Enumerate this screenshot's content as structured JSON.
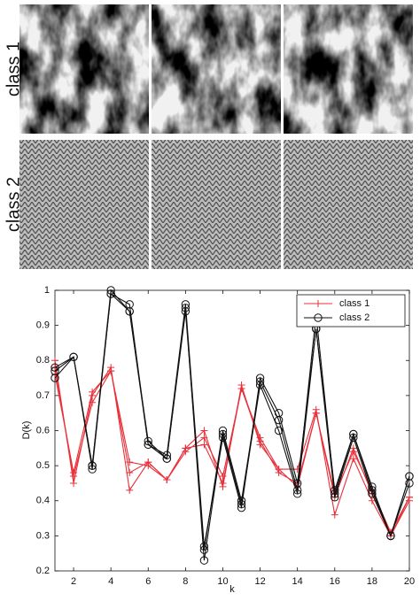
{
  "image_rows": [
    "class 1",
    "class 2"
  ],
  "chart_data": {
    "type": "line",
    "x_label": "k",
    "y_label": "D(k)",
    "x": [
      1,
      2,
      3,
      4,
      5,
      6,
      7,
      8,
      9,
      10,
      11,
      12,
      13,
      14,
      15,
      16,
      17,
      18,
      19,
      20
    ],
    "xlim": [
      1,
      20
    ],
    "xticks": [
      2,
      4,
      6,
      8,
      10,
      12,
      14,
      16,
      18,
      20
    ],
    "ylim": [
      0.2,
      1
    ],
    "yticks": [
      0.2,
      0.3,
      0.4,
      0.5,
      0.6,
      0.7,
      0.8,
      0.9,
      1
    ],
    "legend": "upper right",
    "series": [
      {
        "name": "class 1",
        "color": "#e8303a",
        "marker": "+",
        "lines": [
          [
            0.8,
            0.45,
            0.7,
            0.78,
            0.43,
            0.51,
            0.46,
            0.55,
            0.6,
            0.44,
            0.73,
            0.56,
            0.49,
            0.49,
            0.66,
            0.36,
            0.52,
            0.4,
            0.3,
            0.41
          ],
          [
            0.78,
            0.47,
            0.68,
            0.77,
            0.51,
            0.5,
            0.46,
            0.54,
            0.58,
            0.47,
            0.72,
            0.57,
            0.48,
            0.45,
            0.65,
            0.41,
            0.55,
            0.42,
            0.3,
            0.4
          ],
          [
            0.76,
            0.48,
            0.71,
            0.77,
            0.48,
            0.51,
            0.46,
            0.55,
            0.56,
            0.45,
            0.72,
            0.58,
            0.49,
            0.44,
            0.65,
            0.42,
            0.54,
            0.43,
            0.31,
            0.41
          ]
        ]
      },
      {
        "name": "class 2",
        "color": "#111111",
        "marker": "o",
        "lines": [
          [
            0.77,
            0.81,
            0.5,
            1.0,
            0.94,
            0.56,
            0.52,
            0.95,
            0.23,
            0.59,
            0.39,
            0.73,
            0.6,
            0.42,
            0.89,
            0.41,
            0.58,
            0.42,
            0.3,
            0.45
          ],
          [
            0.75,
            0.81,
            0.49,
            0.99,
            0.94,
            0.57,
            0.52,
            0.94,
            0.26,
            0.6,
            0.4,
            0.74,
            0.63,
            0.43,
            0.93,
            0.42,
            0.59,
            0.43,
            0.3,
            0.47
          ],
          [
            0.78,
            0.81,
            0.5,
            0.99,
            0.96,
            0.56,
            0.53,
            0.96,
            0.27,
            0.58,
            0.38,
            0.75,
            0.65,
            0.45,
            0.89,
            0.43,
            0.59,
            0.44,
            0.3,
            0.47
          ]
        ]
      }
    ]
  }
}
